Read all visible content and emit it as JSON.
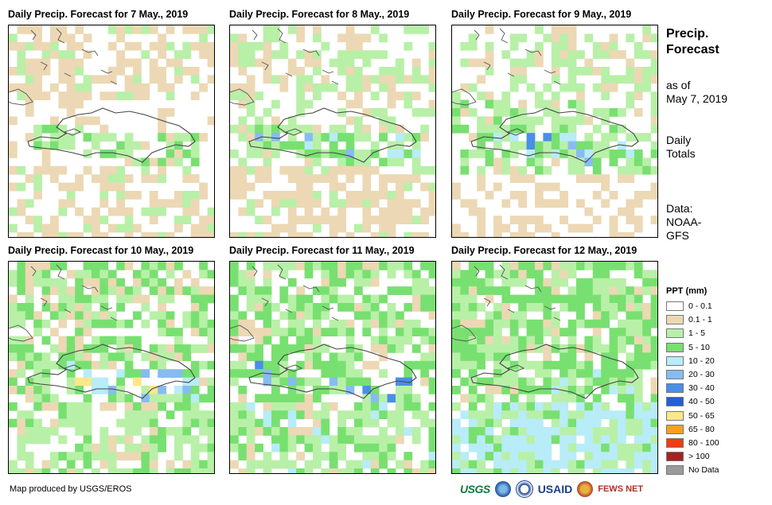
{
  "panels": [
    {
      "title": "Daily Precip. Forecast for 7 May., 2019",
      "seed": 11,
      "profile": "d7"
    },
    {
      "title": "Daily Precip. Forecast for 8 May., 2019",
      "seed": 23,
      "profile": "d8"
    },
    {
      "title": "Daily Precip. Forecast for 9 May., 2019",
      "seed": 37,
      "profile": "d9"
    },
    {
      "title": "Daily Precip. Forecast for 10 May., 2019",
      "seed": 41,
      "profile": "d10"
    },
    {
      "title": "Daily Precip. Forecast for 11 May., 2019",
      "seed": 53,
      "profile": "d11"
    },
    {
      "title": "Daily Precip. Forecast for 12 May., 2019",
      "seed": 67,
      "profile": "d12"
    }
  ],
  "sidebar": {
    "title_line1": "Precip.",
    "title_line2": "Forecast",
    "asof_line1": "as of",
    "asof_line2": "May 7, 2019",
    "daily_line1": "Daily",
    "daily_line2": "Totals",
    "data_line1": "Data:",
    "data_line2": "NOAA-",
    "data_line3": "GFS"
  },
  "legend": {
    "title": "PPT (mm)",
    "items": [
      {
        "label": "0 - 0.1",
        "color": "#ffffff"
      },
      {
        "label": "0.1 - 1",
        "color": "#ecd8b4"
      },
      {
        "label": "1 - 5",
        "color": "#b8f0a8"
      },
      {
        "label": "5 - 10",
        "color": "#78e070"
      },
      {
        "label": "10 - 20",
        "color": "#b8ecf8"
      },
      {
        "label": "20 - 30",
        "color": "#88bcf0"
      },
      {
        "label": "30 - 40",
        "color": "#4a8ee8"
      },
      {
        "label": "40 - 50",
        "color": "#2060d8"
      },
      {
        "label": "50 - 65",
        "color": "#fbe88a"
      },
      {
        "label": "65 - 80",
        "color": "#f8a020"
      },
      {
        "label": "80 - 100",
        "color": "#f03c10"
      },
      {
        "label": "> 100",
        "color": "#a82020"
      },
      {
        "label": "No Data",
        "color": "#9a9a9a"
      }
    ]
  },
  "credit": "Map produced by USGS/EROS",
  "logos": {
    "usgs": "USGS",
    "usaid": "USAID",
    "fews": "FEWS NET"
  }
}
